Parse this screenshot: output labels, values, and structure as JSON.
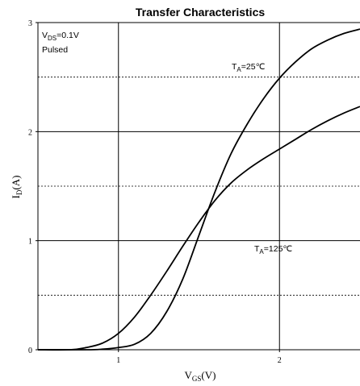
{
  "chart_data": {
    "type": "line",
    "title": "Transfer Characteristics",
    "xlabel": {
      "main": "V",
      "sub": "GS",
      "tail": "(V)"
    },
    "ylabel": {
      "main": "I",
      "sub": "D",
      "tail": "(A)"
    },
    "xlim": [
      0.5,
      2.5
    ],
    "ylim": [
      0,
      3
    ],
    "x_ticks": [
      1,
      2
    ],
    "x_tick_labels": [
      "1",
      "2"
    ],
    "y_ticks": [
      0,
      1,
      2,
      3
    ],
    "y_tick_labels": [
      "0",
      "1",
      "2",
      "3"
    ],
    "grid": {
      "major_solid": true,
      "minor_dashed_y": [
        0.5,
        1.5,
        2.5
      ]
    },
    "annotations": {
      "conditions": {
        "line1_main": "V",
        "line1_sub": "DS",
        "line1_tail": "=0.1V",
        "line2": "Pulsed"
      },
      "series_25": {
        "main": "T",
        "sub": "A",
        "tail": "=25℃"
      },
      "series_125": {
        "main": "T",
        "sub": "A",
        "tail": "=125℃"
      }
    },
    "series": [
      {
        "name": "TA=25℃",
        "x": [
          0.5,
          0.8,
          0.9,
          1.0,
          1.1,
          1.2,
          1.3,
          1.4,
          1.5,
          1.6,
          1.7,
          1.8,
          1.9,
          2.0,
          2.1,
          2.2,
          2.3,
          2.4,
          2.5
        ],
        "y": [
          0.0,
          0.0,
          0.005,
          0.02,
          0.05,
          0.15,
          0.35,
          0.65,
          1.05,
          1.45,
          1.8,
          2.07,
          2.3,
          2.49,
          2.64,
          2.76,
          2.84,
          2.9,
          2.94
        ]
      },
      {
        "name": "TA=125℃",
        "x": [
          0.5,
          0.7,
          0.8,
          0.9,
          1.0,
          1.1,
          1.2,
          1.3,
          1.4,
          1.5,
          1.6,
          1.7,
          1.8,
          1.9,
          2.0,
          2.1,
          2.2,
          2.3,
          2.4,
          2.5
        ],
        "y": [
          0.0,
          0.0,
          0.02,
          0.06,
          0.15,
          0.3,
          0.5,
          0.72,
          0.95,
          1.17,
          1.37,
          1.53,
          1.65,
          1.75,
          1.84,
          1.93,
          2.02,
          2.1,
          2.17,
          2.23
        ]
      }
    ]
  }
}
